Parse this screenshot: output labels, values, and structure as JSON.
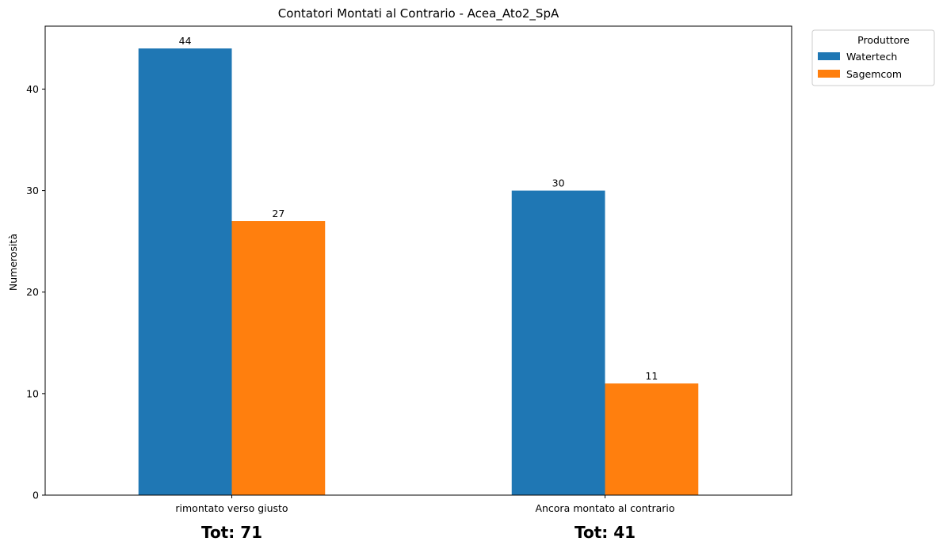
{
  "chart_data": {
    "type": "bar",
    "title": "Contatori Montati al Contrario - Acea_Ato2_SpA",
    "xlabel": "",
    "ylabel": "Numerosità",
    "categories": [
      "rimontato verso giusto",
      "Ancora montato al contrario"
    ],
    "series": [
      {
        "name": "Watertech",
        "values": [
          44,
          30
        ],
        "color": "#1f77b4"
      },
      {
        "name": "Sagemcom",
        "values": [
          27,
          11
        ],
        "color": "#ff7f0e"
      }
    ],
    "ylim": [
      0,
      46.2
    ],
    "yticks": [
      0,
      10,
      20,
      30,
      40
    ],
    "grid": false,
    "legend": {
      "title": "Produttore",
      "placement": "outside-top-right"
    },
    "totals": [
      "Tot: 71",
      "Tot: 41"
    ]
  }
}
